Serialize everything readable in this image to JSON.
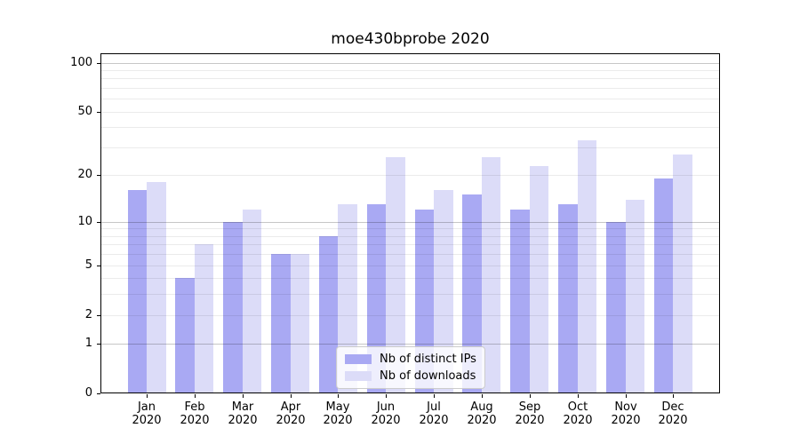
{
  "title": "moe430bprobe 2020",
  "legend": {
    "items": [
      {
        "label": "Nb of distinct IPs",
        "color": "#a9a9f3"
      },
      {
        "label": "Nb of downloads",
        "color": "#dcdcf8"
      }
    ]
  },
  "chart_data": {
    "type": "bar",
    "title": "moe430bprobe 2020",
    "categories": [
      "Jan 2020",
      "Feb 2020",
      "Mar 2020",
      "Apr 2020",
      "May 2020",
      "Jun 2020",
      "Jul 2020",
      "Aug 2020",
      "Sep 2020",
      "Oct 2020",
      "Nov 2020",
      "Dec 2020"
    ],
    "series": [
      {
        "name": "Nb of distinct IPs",
        "color": "#a9a9f3",
        "values": [
          16,
          4,
          10,
          6,
          8,
          13,
          12,
          15,
          12,
          13,
          10,
          19
        ]
      },
      {
        "name": "Nb of downloads",
        "color": "#dcdcf8",
        "values": [
          18,
          7,
          12,
          6,
          13,
          26,
          16,
          26,
          23,
          33,
          14,
          27
        ]
      }
    ],
    "xlabel": "",
    "ylabel": "",
    "y_scale": "log1p",
    "ylim": [
      0,
      114
    ],
    "y_ticks": [
      0,
      1,
      2,
      5,
      10,
      20,
      50,
      100
    ],
    "y_gridlines_major": [
      1,
      10,
      100
    ],
    "y_gridlines_minor": [
      2,
      3,
      4,
      5,
      6,
      7,
      8,
      9,
      20,
      30,
      40,
      50,
      60,
      70,
      80,
      90
    ],
    "grid": true,
    "legend_position": "lower center"
  }
}
